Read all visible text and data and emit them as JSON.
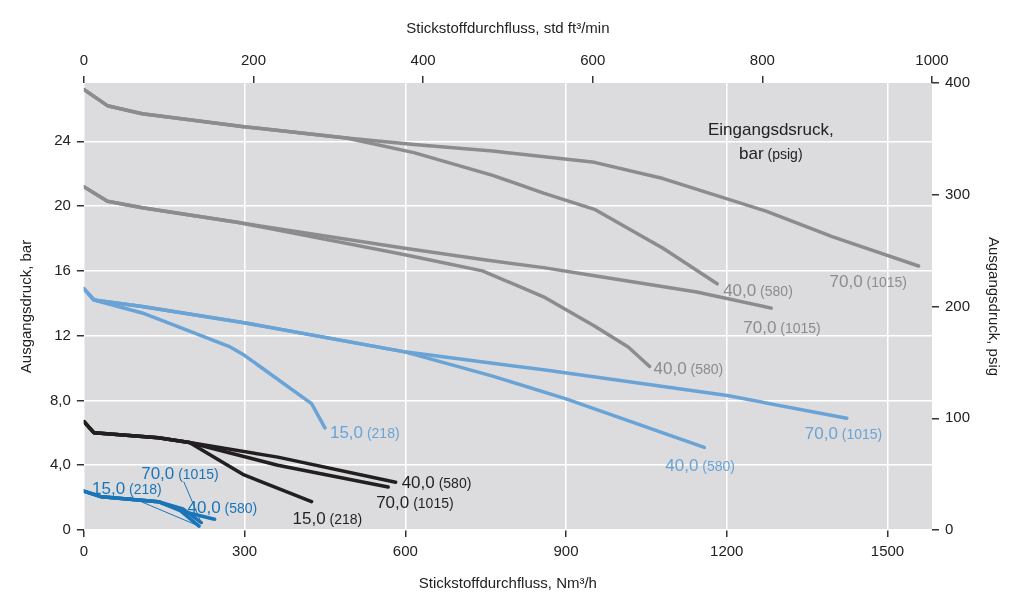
{
  "chart_data": {
    "type": "line",
    "xlabel": "Stickstoffdurchfluss, Nm³/h",
    "x2label": "Stickstoffdurchfluss, std ft³/min",
    "ylabel": "Ausgangsdruck, bar",
    "y2label": "Ausgangsdruck, psig",
    "annotations": [
      "Eingangsdsruck,\nbar (psig)"
    ],
    "xlim": [
      0,
      1583
    ],
    "xticks": [
      0,
      300,
      600,
      900,
      1200,
      1500
    ],
    "x2lim": [
      0,
      1000
    ],
    "x2ticks": [
      0,
      200,
      400,
      600,
      800,
      1000
    ],
    "ylim": [
      0,
      27.6
    ],
    "yticks": [
      0,
      {
        "value": 4,
        "label": "4,0"
      },
      {
        "value": 8,
        "label": "8,0"
      },
      12,
      16,
      20,
      24
    ],
    "y2lim": [
      0,
      400
    ],
    "y2ticks": [
      0,
      100,
      200,
      300,
      400
    ],
    "grid": true,
    "legend": false,
    "marker": "none",
    "line_style": "solid",
    "series": [
      {
        "name": "70,0 (1015)",
        "color": "#8c8c8e",
        "x": [
          0,
          44,
          109,
          299,
          490,
          616,
          763,
          953,
          1081,
          1272,
          1398,
          1558
        ],
        "values": [
          27.2,
          26.2,
          25.7,
          24.9,
          24.2,
          23.8,
          23.4,
          22.7,
          21.7,
          19.7,
          18.1,
          16.3
        ]
      },
      {
        "name": "40,0 (580)",
        "color": "#8c8c8e",
        "x": [
          0,
          44,
          109,
          299,
          490,
          616,
          763,
          858,
          953,
          1081,
          1182
        ],
        "values": [
          27.2,
          26.2,
          25.7,
          24.9,
          24.2,
          23.3,
          21.9,
          20.8,
          19.8,
          17.4,
          15.2
        ]
      },
      {
        "name": "70,0 (1015)",
        "color": "#8c8c8e",
        "x": [
          0,
          44,
          109,
          286,
          599,
          744,
          858,
          953,
          1144,
          1283
        ],
        "values": [
          21.2,
          20.3,
          19.9,
          19.0,
          17.4,
          16.7,
          16.2,
          15.7,
          14.7,
          13.7
        ]
      },
      {
        "name": "40,0 (580)",
        "color": "#8c8c8e",
        "x": [
          0,
          44,
          109,
          286,
          599,
          744,
          858,
          953,
          1016,
          1056
        ],
        "values": [
          21.2,
          20.3,
          19.9,
          19.0,
          17.0,
          16.0,
          14.4,
          12.6,
          11.3,
          10.1
        ]
      },
      {
        "name": "70,0 (1015)",
        "color": "#6aa3d5",
        "x": [
          0,
          19,
          109,
          299,
          599,
          763,
          858,
          1201,
          1424
        ],
        "values": [
          14.9,
          14.2,
          13.8,
          12.8,
          11.0,
          10.3,
          9.9,
          8.3,
          6.9
        ]
      },
      {
        "name": "40,0 (580)",
        "color": "#6aa3d5",
        "x": [
          0,
          19,
          109,
          299,
          599,
          763,
          900,
          1158
        ],
        "values": [
          14.9,
          14.2,
          13.8,
          12.8,
          11.0,
          9.5,
          8.1,
          5.1
        ]
      },
      {
        "name": "15,0 (218)",
        "color": "#6aa3d5",
        "x": [
          0,
          19,
          109,
          172,
          273,
          299,
          425,
          450
        ],
        "values": [
          14.9,
          14.2,
          13.4,
          12.6,
          11.3,
          10.8,
          7.8,
          6.3
        ]
      },
      {
        "name": "40,0 (580)",
        "color": "#231f20",
        "x": [
          0,
          19,
          139,
          197,
          362,
          582
        ],
        "values": [
          6.7,
          6.0,
          5.7,
          5.4,
          4.5,
          2.95
        ]
      },
      {
        "name": "70,0 (1015)",
        "color": "#231f20",
        "x": [
          0,
          19,
          139,
          197,
          362,
          568
        ],
        "values": [
          6.7,
          6.0,
          5.7,
          5.4,
          4.0,
          2.65
        ]
      },
      {
        "name": "15,0 (218)",
        "color": "#231f20",
        "x": [
          0,
          19,
          139,
          197,
          299,
          425
        ],
        "values": [
          6.7,
          6.0,
          5.7,
          5.4,
          3.4,
          1.75
        ]
      },
      {
        "name": "15,0 (218)",
        "color": "#1a75b8",
        "x": [
          0,
          33,
          139,
          180,
          215
        ],
        "values": [
          2.4,
          2.05,
          1.75,
          1.2,
          0.24
        ]
      },
      {
        "name": "70,0 (1015)",
        "color": "#1a75b8",
        "x": [
          0,
          33,
          139,
          185,
          219
        ],
        "values": [
          2.4,
          2.05,
          1.75,
          1.3,
          0.45
        ]
      },
      {
        "name": "40,0 (580)",
        "color": "#1a75b8",
        "x": [
          0,
          33,
          139,
          190,
          244
        ],
        "values": [
          2.4,
          2.05,
          1.75,
          1.1,
          0.66
        ]
      }
    ]
  }
}
